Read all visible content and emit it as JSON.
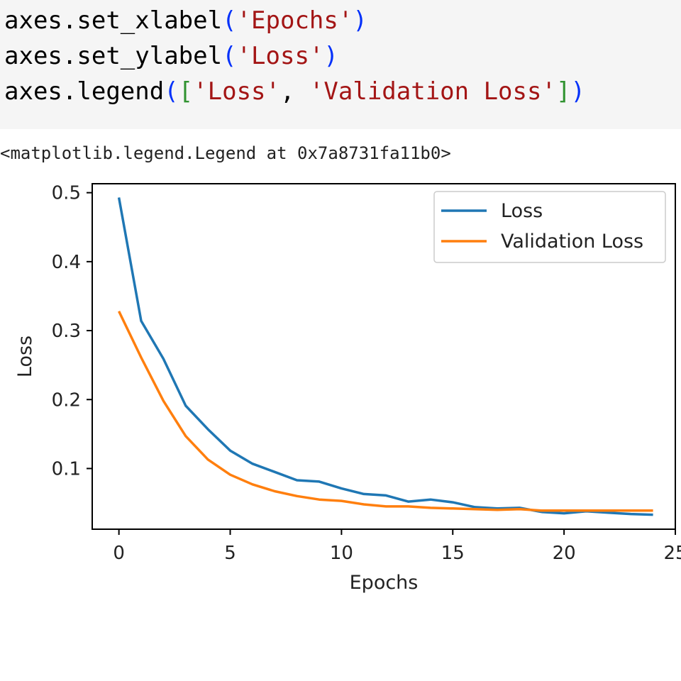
{
  "code": {
    "lines": [
      {
        "obj": "axes",
        "method": "set_xlabel",
        "args": [
          "'Epochs'"
        ]
      },
      {
        "obj": "axes",
        "method": "set_ylabel",
        "args": [
          "'Loss'"
        ]
      },
      {
        "obj": "axes",
        "method": "legend",
        "args": [
          "'Loss'",
          "'Validation Loss'"
        ]
      }
    ]
  },
  "output": {
    "text": "<matplotlib.legend.Legend at 0x7a8731fa11b0>"
  },
  "chart_data": {
    "type": "line",
    "title": "",
    "xlabel": "Epochs",
    "ylabel": "Loss",
    "xlim": [
      -1.2,
      25
    ],
    "ylim": [
      0.012,
      0.513
    ],
    "xticks": [
      0,
      5,
      10,
      15,
      20,
      25
    ],
    "xtick_labels": [
      "0",
      "5",
      "10",
      "15",
      "20",
      "25"
    ],
    "yticks": [
      0.1,
      0.2,
      0.3,
      0.4,
      0.5
    ],
    "ytick_labels": [
      "0.1",
      "0.2",
      "0.3",
      "0.4",
      "0.5"
    ],
    "grid": false,
    "legend_position": "top-right",
    "x": [
      0,
      1,
      2,
      3,
      4,
      5,
      6,
      7,
      8,
      9,
      10,
      11,
      12,
      13,
      14,
      15,
      16,
      17,
      18,
      19,
      20,
      21,
      22,
      23,
      24
    ],
    "series": [
      {
        "name": "Loss",
        "color": "#1f77b4",
        "values": [
          0.493,
          0.314,
          0.259,
          0.191,
          0.157,
          0.126,
          0.107,
          0.095,
          0.083,
          0.081,
          0.071,
          0.063,
          0.061,
          0.052,
          0.055,
          0.051,
          0.044,
          0.042,
          0.043,
          0.037,
          0.035,
          0.038,
          0.036,
          0.034,
          0.033
        ]
      },
      {
        "name": "Validation Loss",
        "color": "#ff7f0e",
        "values": [
          0.328,
          0.261,
          0.198,
          0.147,
          0.113,
          0.091,
          0.077,
          0.067,
          0.06,
          0.055,
          0.053,
          0.048,
          0.045,
          0.045,
          0.043,
          0.042,
          0.041,
          0.04,
          0.041,
          0.039,
          0.039,
          0.039,
          0.039,
          0.039,
          0.039
        ]
      }
    ]
  }
}
